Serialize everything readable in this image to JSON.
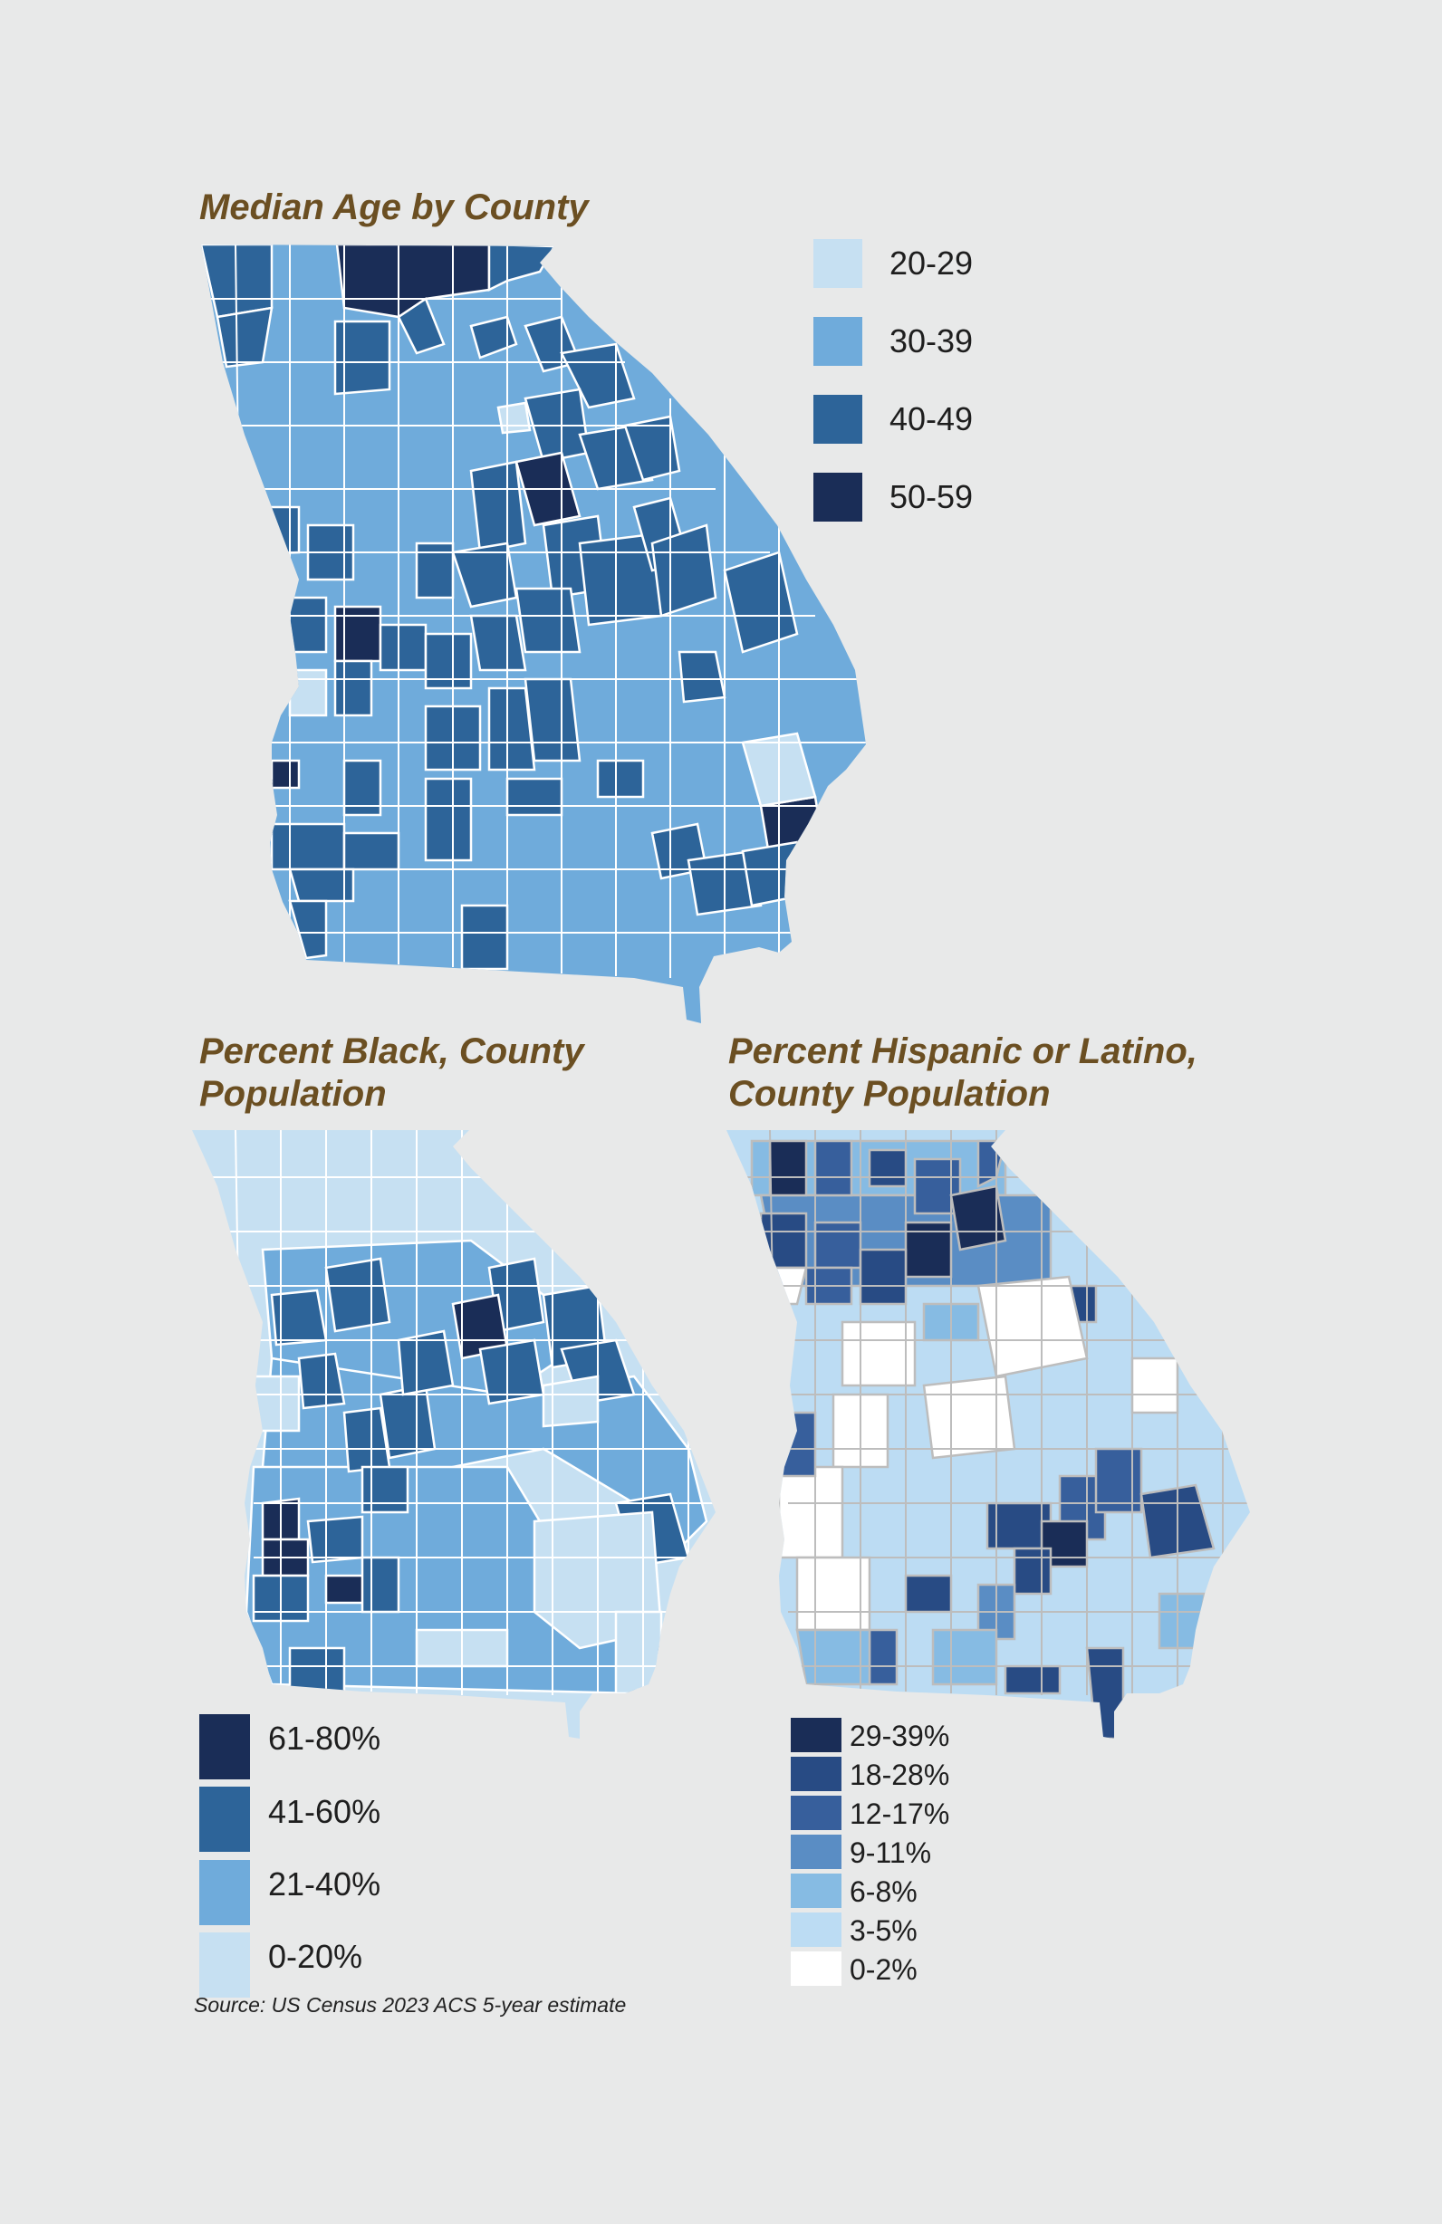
{
  "panels": {
    "median_age": {
      "title": "Median Age by County",
      "legend": [
        {
          "label": "20-29",
          "color": "#c6e0f2"
        },
        {
          "label": "30-39",
          "color": "#6fabdb"
        },
        {
          "label": "40-49",
          "color": "#2d6499"
        },
        {
          "label": "50-59",
          "color": "#1a2d57"
        }
      ]
    },
    "percent_black": {
      "title_line1": "Percent Black, County",
      "title_line2": "Population",
      "legend": [
        {
          "label": "61-80%",
          "color": "#1a2d57"
        },
        {
          "label": "41-60%",
          "color": "#2d6499"
        },
        {
          "label": "21-40%",
          "color": "#6fabdb"
        },
        {
          "label": "0-20%",
          "color": "#c6e0f2"
        }
      ]
    },
    "percent_hispanic": {
      "title_line1": "Percent Hispanic or Latino,",
      "title_line2": "County Population",
      "legend": [
        {
          "label": "29-39%",
          "color": "#1a2d57"
        },
        {
          "label": "18-28%",
          "color": "#284b84"
        },
        {
          "label": "12-17%",
          "color": "#375f9c"
        },
        {
          "label": "9-11%",
          "color": "#5a8dc4"
        },
        {
          "label": "6-8%",
          "color": "#86bbe3"
        },
        {
          "label": "3-5%",
          "color": "#bcdcf3"
        },
        {
          "label": "0-2%",
          "color": "#ffffff"
        }
      ]
    }
  },
  "source": "Source: US Census 2023 ACS 5-year estimate",
  "colors": {
    "background": "#e8e9e9",
    "title": "#6b4f22",
    "county_border_age": "#ffffff",
    "county_border_hispanic": "#bdbdbd"
  }
}
